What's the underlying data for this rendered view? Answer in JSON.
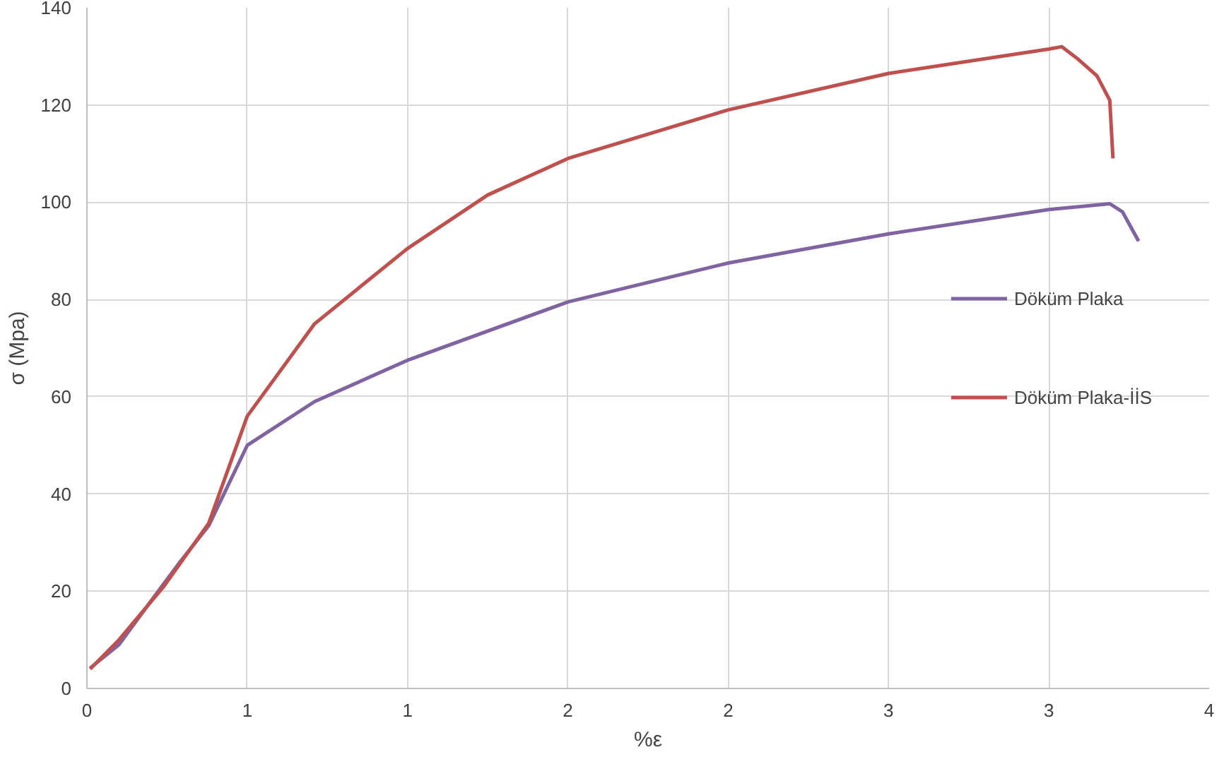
{
  "chart_data": {
    "type": "line",
    "xlabel": "%ε",
    "ylabel": "σ (Mpa)",
    "xlim": [
      0,
      3.5
    ],
    "xticks": [
      0,
      {
        "value": 0.5,
        "label": "1"
      },
      1,
      {
        "value": 1.5,
        "label": "2"
      },
      2,
      {
        "value": 2.5,
        "label": "3"
      },
      3,
      {
        "value": 3.5,
        "label": "4"
      }
    ],
    "ylim": [
      0,
      140
    ],
    "yticks": [
      0,
      20,
      40,
      60,
      80,
      100,
      120,
      140
    ],
    "grid": true,
    "legend": "right",
    "marker": "none",
    "line_style": "solid",
    "series": [
      {
        "name": "Döküm Plaka",
        "color": "#8064a2",
        "x": [
          0.01,
          0.1,
          0.2,
          0.29,
          0.38,
          0.5,
          0.71,
          1.0,
          1.5,
          2.0,
          2.5,
          3.0,
          3.19,
          3.23,
          3.28
        ],
        "values": [
          4.2,
          9,
          18,
          26,
          33.5,
          50,
          59,
          67.5,
          79.5,
          87.5,
          93.5,
          98.5,
          99.7,
          98,
          92
        ]
      },
      {
        "name": "Döküm Plaka-İİS",
        "color": "#c0504d",
        "x": [
          0.01,
          0.1,
          0.24,
          0.38,
          0.5,
          0.71,
          1.0,
          1.25,
          1.5,
          2.0,
          2.5,
          3.0,
          3.04,
          3.09,
          3.15,
          3.19,
          3.2
        ],
        "values": [
          4,
          10,
          21,
          34,
          56,
          75,
          90.5,
          101.5,
          109,
          119,
          126.5,
          131.5,
          132,
          129.5,
          126,
          121,
          109
        ]
      }
    ]
  }
}
